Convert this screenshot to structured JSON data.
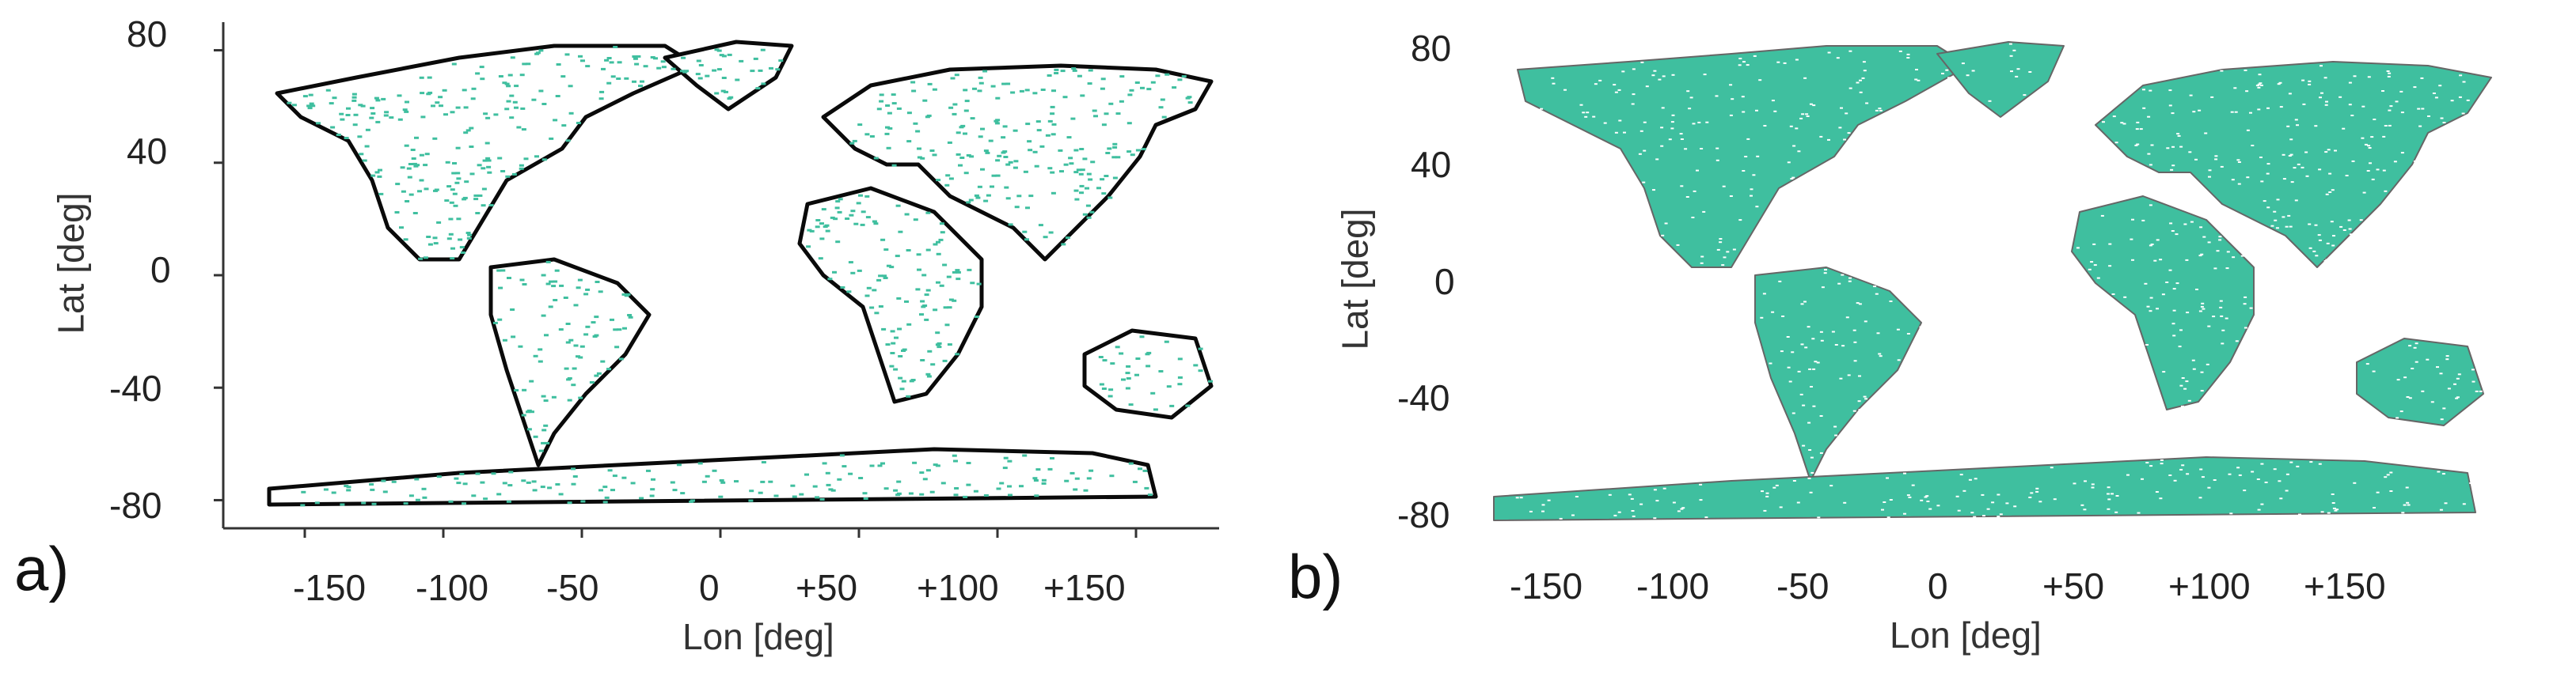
{
  "colors": {
    "land_fill": "#3fbf9f",
    "coast_line_a": "#0a0a0a",
    "coast_line_b": "#666666"
  },
  "panels": [
    {
      "label": "a)",
      "xlabel": "Lon [deg]",
      "ylabel": "Lat [deg]",
      "xticks": [
        "-150",
        "-100",
        "-50",
        "0",
        "+50",
        "+100",
        "+150"
      ],
      "yticks": [
        "80",
        "40",
        "0",
        "-40",
        "-80"
      ],
      "style": "bold black coastlines, sparse green land coverage"
    },
    {
      "label": "b)",
      "xlabel": "Lon [deg]",
      "ylabel": "Lat [deg]",
      "xticks": [
        "-150",
        "-100",
        "-50",
        "0",
        "+50",
        "+100",
        "+150"
      ],
      "yticks": [
        "80",
        "40",
        "0",
        "-40",
        "-80"
      ],
      "style": "thin grey coastlines, dense green land coverage"
    }
  ],
  "chart_data": [
    {
      "type": "map",
      "xlabel": "Lon [deg]",
      "ylabel": "Lat [deg]",
      "xlim": [
        -180,
        180
      ],
      "ylim": [
        -90,
        90
      ],
      "xticks": [
        -150,
        -100,
        -50,
        0,
        50,
        100,
        150
      ],
      "yticks": [
        80,
        40,
        0,
        -40,
        -80
      ]
    },
    {
      "type": "map",
      "xlabel": "Lon [deg]",
      "ylabel": "Lat [deg]",
      "xlim": [
        -180,
        180
      ],
      "ylim": [
        -90,
        90
      ],
      "xticks": [
        -150,
        -100,
        -50,
        0,
        50,
        100,
        150
      ],
      "yticks": [
        80,
        40,
        0,
        -40,
        -80
      ]
    }
  ]
}
